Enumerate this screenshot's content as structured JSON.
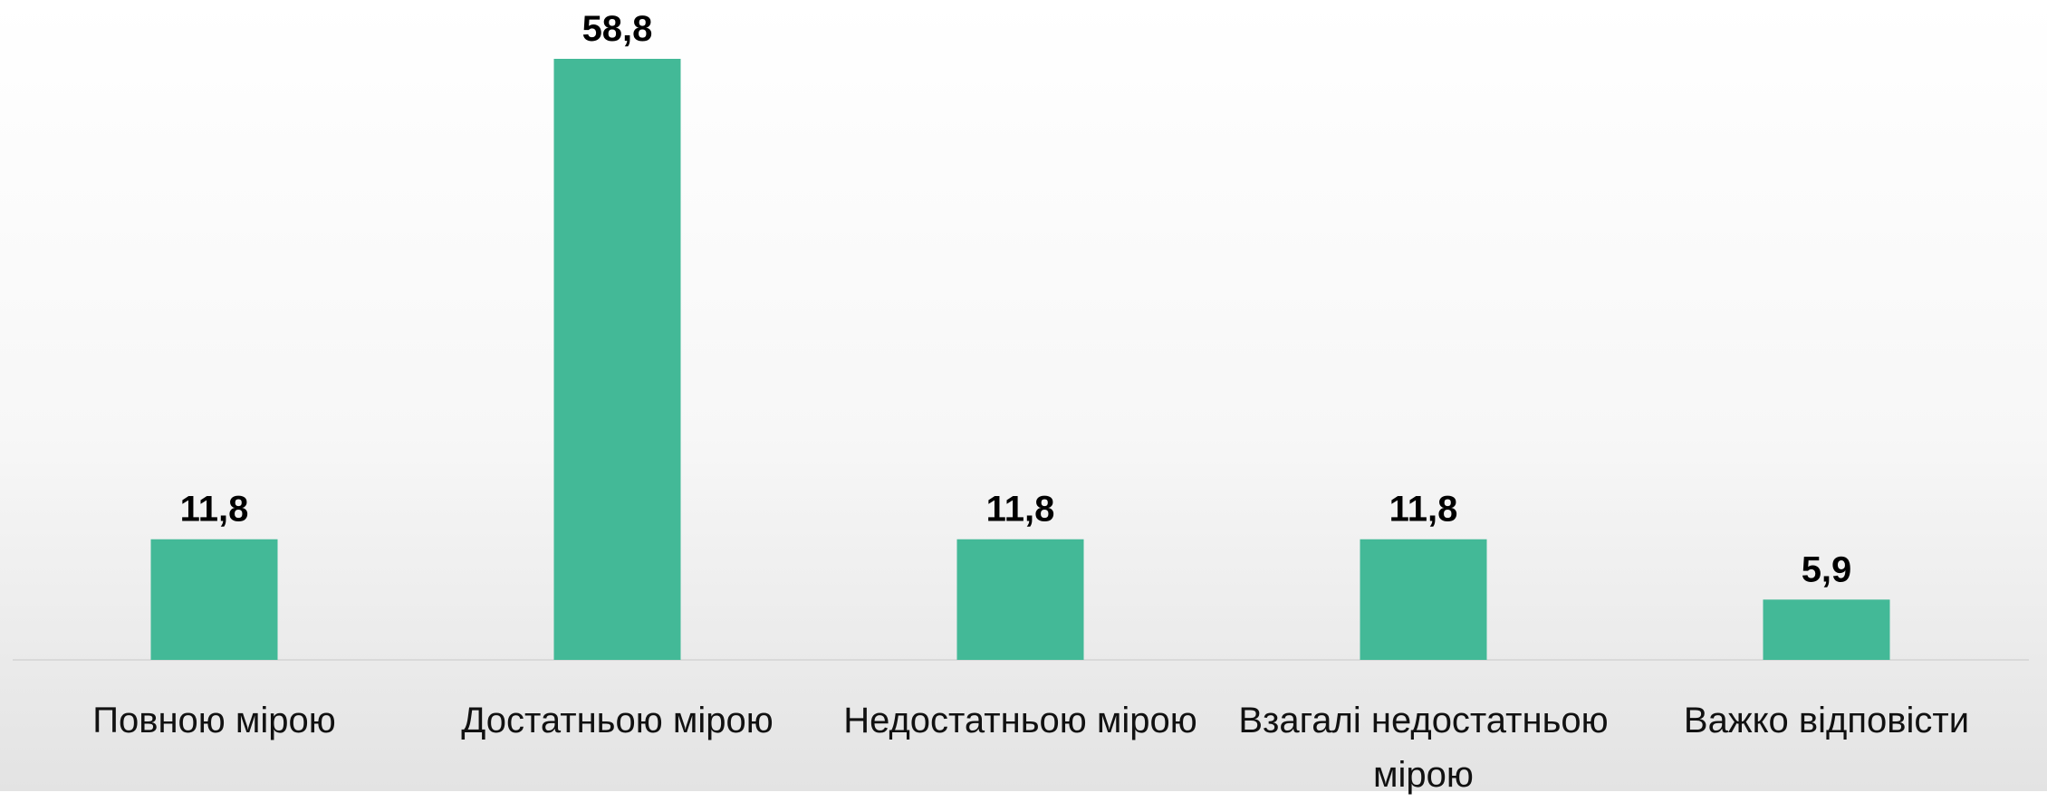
{
  "chart_data": {
    "type": "bar",
    "categories": [
      "Повною мірою",
      "Достатньою мірою",
      "Недостатньою мірою",
      "Взагалі недостатньою мірою",
      "Важко відповісти"
    ],
    "values": [
      11.8,
      58.8,
      11.8,
      11.8,
      5.9
    ],
    "value_labels": [
      "11,8",
      "58,8",
      "11,8",
      "11,8",
      "5,9"
    ],
    "color": "#43b997"
  }
}
